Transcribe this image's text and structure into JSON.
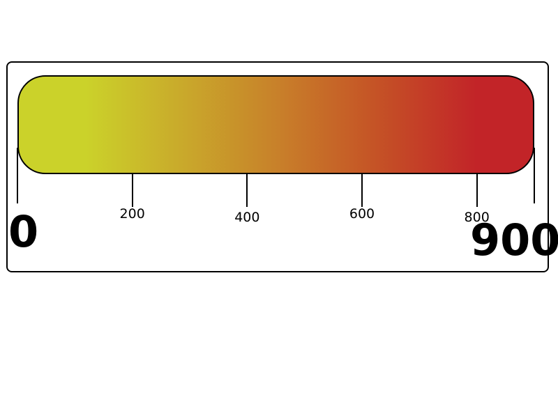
{
  "scale": {
    "min_label": "0",
    "max_label": "900",
    "min_value": 0,
    "max_value": 900,
    "ticks": [
      {
        "value": 0,
        "label": ""
      },
      {
        "value": 200,
        "label": "200"
      },
      {
        "value": 400,
        "label": "400"
      },
      {
        "value": 600,
        "label": "600"
      },
      {
        "value": 800,
        "label": "800"
      },
      {
        "value": 900,
        "label": ""
      }
    ],
    "gradient_colors": [
      "#cbd22a",
      "#c9aa2b",
      "#c8812a",
      "#c55526",
      "#c22428"
    ]
  }
}
